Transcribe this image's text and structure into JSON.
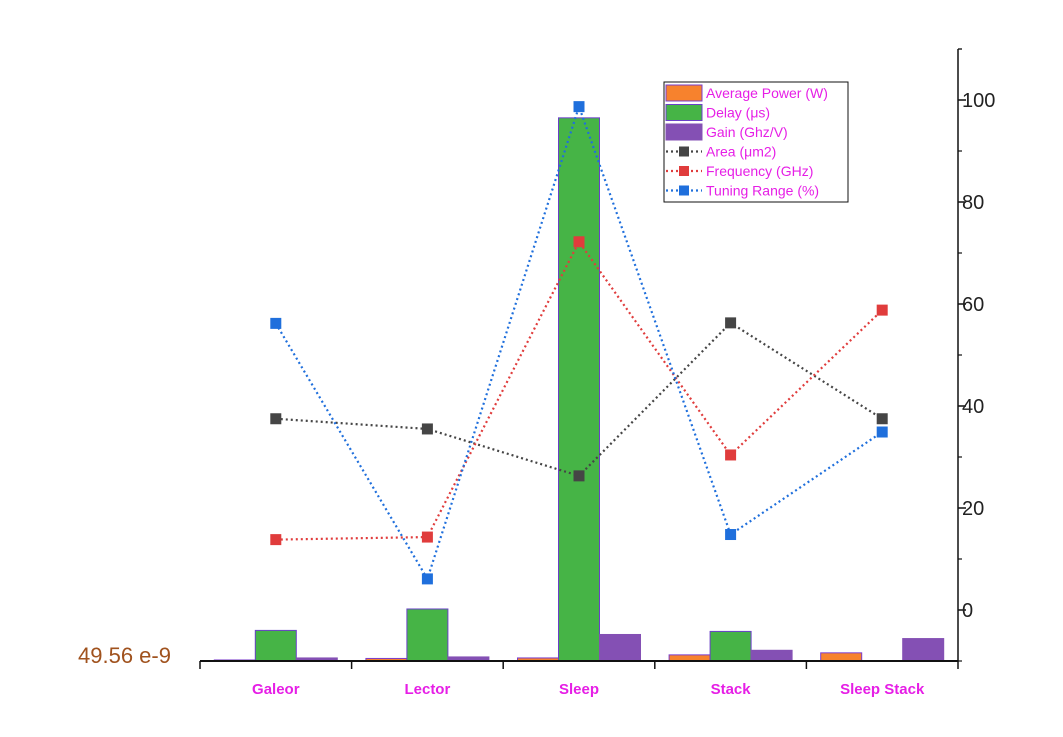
{
  "chart_data": {
    "type": "bar",
    "categories": [
      "Galeor",
      "Lector",
      "Sleep",
      "Stack",
      "Sleep Stack"
    ],
    "category_label_color": "#e61ee6",
    "y_right": {
      "ticks": [
        0,
        20,
        40,
        60,
        80,
        100
      ],
      "tick_labels": [
        "0",
        "20",
        "40",
        "60",
        "80",
        "100"
      ],
      "range": [
        -10,
        110
      ]
    },
    "bar_series": [
      {
        "name": "Average Power (W)",
        "color": "#f7822d",
        "border": "#7a3ccc",
        "values": [
          -9.8,
          -9.5,
          -9.4,
          -8.8,
          -8.4
        ]
      },
      {
        "name": "Delay (μs)",
        "color": "#46b446",
        "border": "#6a40c8",
        "values": [
          -4,
          0.2,
          96.5,
          -4.2,
          null
        ]
      },
      {
        "name": "Gain (Ghz/V)",
        "color": "#8450b4",
        "border": "#8450b4",
        "values": [
          -9.4,
          -9.2,
          -4.8,
          -7.9,
          -5.6
        ]
      }
    ],
    "line_series": [
      {
        "name": "Area (μm2)",
        "color": "#454545",
        "values": [
          37.5,
          35.5,
          26.3,
          56.3,
          37.5
        ]
      },
      {
        "name": "Frequency (GHz)",
        "color": "#e03c3c",
        "values": [
          13.8,
          14.3,
          72.2,
          30.4,
          58.8
        ]
      },
      {
        "name": "Tuning Range (%)",
        "color": "#1f6fdc",
        "values": [
          56.2,
          6.1,
          98.7,
          14.8,
          34.9
        ]
      }
    ],
    "annotation": {
      "text": "49.56 e-9",
      "color": "#a0521e"
    },
    "legend_position": "top-right"
  }
}
